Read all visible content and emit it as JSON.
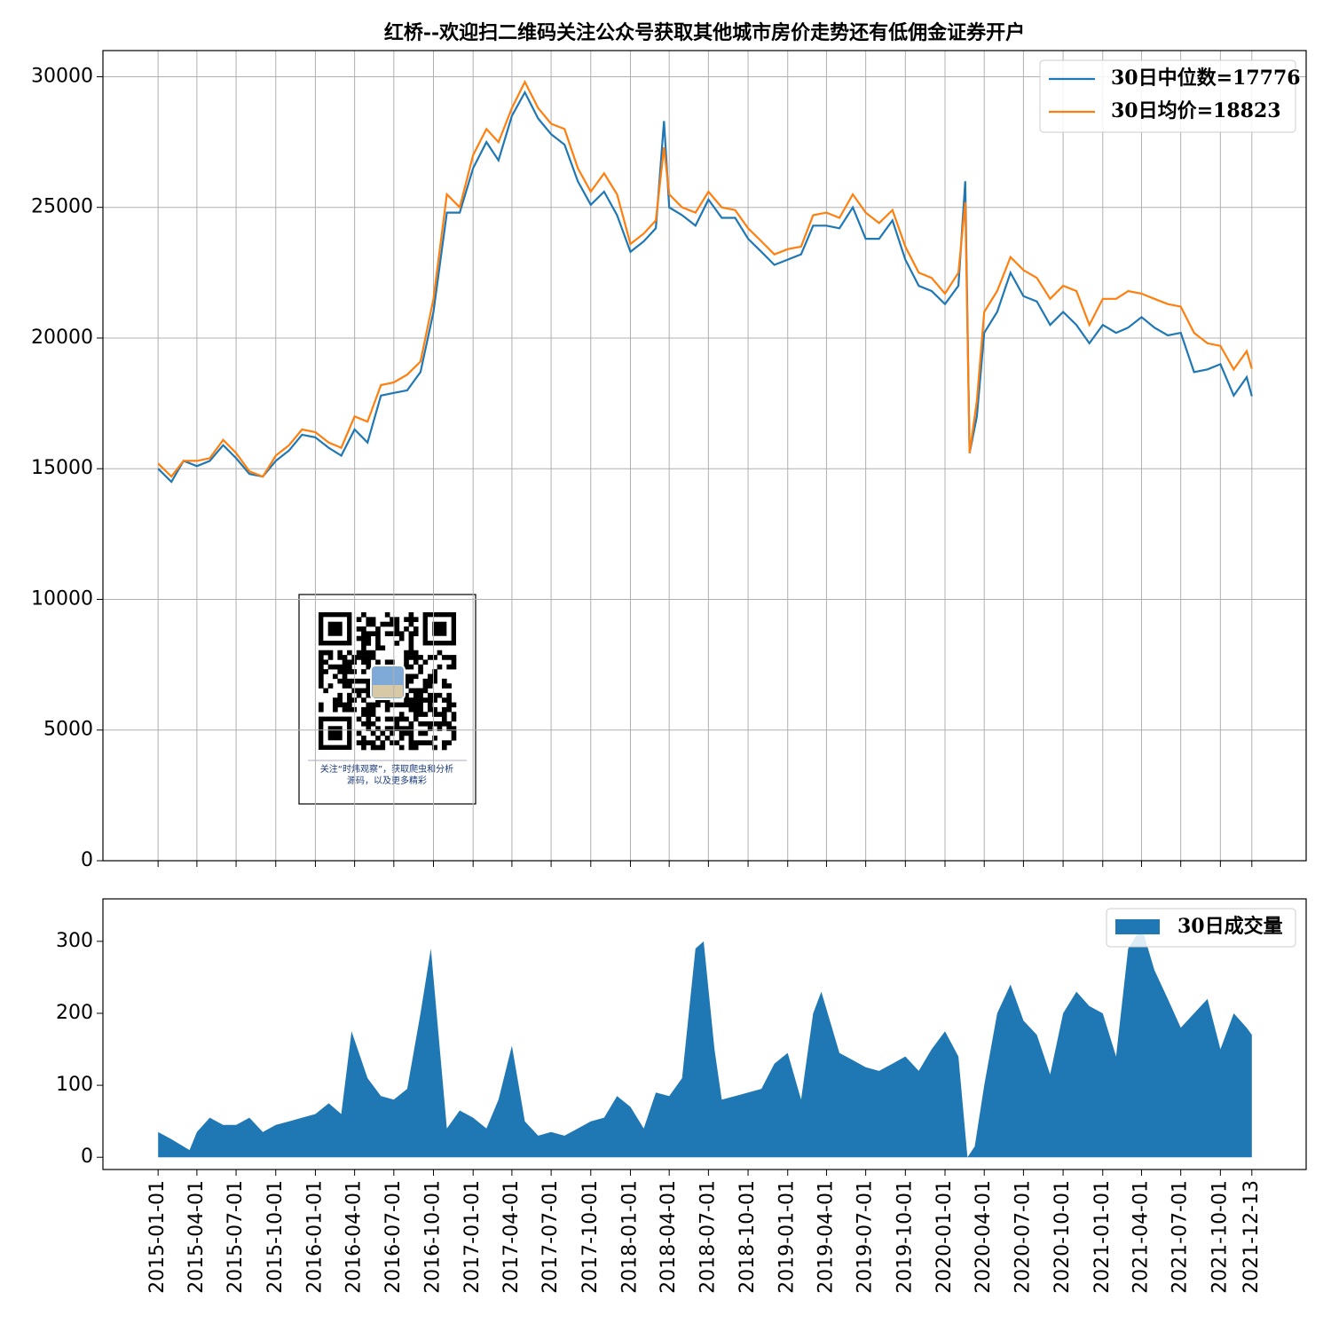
{
  "chart_data": [
    {
      "type": "line",
      "title": "红桥--欢迎扫二维码关注公众号获取其他城市房价走势还有低佣金证券开户",
      "x": [
        "2015-01-01",
        "2015-02-01",
        "2015-03-01",
        "2015-04-01",
        "2015-05-01",
        "2015-06-01",
        "2015-07-01",
        "2015-08-01",
        "2015-09-01",
        "2015-10-01",
        "2015-11-01",
        "2015-12-01",
        "2016-01-01",
        "2016-02-01",
        "2016-03-01",
        "2016-04-01",
        "2016-05-01",
        "2016-06-01",
        "2016-07-01",
        "2016-08-01",
        "2016-09-01",
        "2016-10-01",
        "2016-11-01",
        "2016-12-01",
        "2017-01-01",
        "2017-02-01",
        "2017-03-01",
        "2017-04-01",
        "2017-05-01",
        "2017-06-01",
        "2017-07-01",
        "2017-08-01",
        "2017-09-01",
        "2017-10-01",
        "2017-11-01",
        "2017-12-01",
        "2018-01-01",
        "2018-02-01",
        "2018-03-01",
        "2018-03-20",
        "2018-04-01",
        "2018-05-01",
        "2018-06-01",
        "2018-07-01",
        "2018-08-01",
        "2018-09-01",
        "2018-10-01",
        "2018-11-01",
        "2018-12-01",
        "2019-01-01",
        "2019-02-01",
        "2019-03-01",
        "2019-04-01",
        "2019-05-01",
        "2019-06-01",
        "2019-07-01",
        "2019-08-01",
        "2019-09-01",
        "2019-10-01",
        "2019-11-01",
        "2019-12-01",
        "2020-01-01",
        "2020-02-01",
        "2020-02-17",
        "2020-02-27",
        "2020-03-15",
        "2020-04-01",
        "2020-05-01",
        "2020-06-01",
        "2020-07-01",
        "2020-08-01",
        "2020-09-01",
        "2020-10-01",
        "2020-11-01",
        "2020-12-01",
        "2021-01-01",
        "2021-02-01",
        "2021-03-01",
        "2021-04-01",
        "2021-05-01",
        "2021-06-01",
        "2021-07-01",
        "2021-08-01",
        "2021-09-01",
        "2021-10-01",
        "2021-11-01",
        "2021-12-01",
        "2021-12-13"
      ],
      "series": [
        {
          "name": "30日中位数=17776",
          "color": "#1f77b4",
          "values": [
            15000,
            14500,
            15300,
            15100,
            15300,
            15900,
            15400,
            14800,
            14700,
            15300,
            15700,
            16300,
            16200,
            15800,
            15500,
            16500,
            16000,
            17800,
            17900,
            18000,
            18700,
            21000,
            24800,
            24800,
            26500,
            27500,
            26800,
            28500,
            29400,
            28400,
            27800,
            27400,
            26000,
            25100,
            25600,
            24700,
            23300,
            23700,
            24200,
            28300,
            25000,
            24700,
            24300,
            25300,
            24600,
            24600,
            23800,
            23300,
            22800,
            23000,
            23200,
            24300,
            24300,
            24200,
            25000,
            23800,
            23800,
            24500,
            23000,
            22000,
            21800,
            21300,
            22000,
            26000,
            15600,
            17000,
            20200,
            21000,
            22500,
            21600,
            21400,
            20500,
            21000,
            20500,
            19800,
            20500,
            20200,
            20400,
            20800,
            20400,
            20100,
            20200,
            18700,
            18800,
            19000,
            17800,
            18500,
            17776
          ]
        },
        {
          "name": "30日均价=18823",
          "color": "#ff7f0e",
          "values": [
            15200,
            14700,
            15300,
            15300,
            15400,
            16100,
            15600,
            14900,
            14700,
            15500,
            15900,
            16500,
            16400,
            16000,
            15800,
            17000,
            16800,
            18200,
            18300,
            18600,
            19100,
            21500,
            25500,
            25000,
            27000,
            28000,
            27500,
            28800,
            29800,
            28800,
            28200,
            28000,
            26500,
            25600,
            26300,
            25500,
            23600,
            24000,
            24500,
            27300,
            25500,
            25000,
            24800,
            25600,
            25000,
            24900,
            24200,
            23700,
            23200,
            23400,
            23500,
            24700,
            24800,
            24600,
            25500,
            24800,
            24400,
            24900,
            23500,
            22500,
            22300,
            21700,
            22500,
            25200,
            15600,
            17600,
            21000,
            21800,
            23100,
            22600,
            22300,
            21500,
            22000,
            21800,
            20500,
            21500,
            21500,
            21800,
            21700,
            21500,
            21300,
            21200,
            20200,
            19800,
            19700,
            18800,
            19500,
            18823
          ]
        }
      ],
      "xlim": [
        "2014-08-26",
        "2022-04-18"
      ],
      "xticks": [
        "2015-01-01",
        "2015-04-01",
        "2015-07-01",
        "2015-10-01",
        "2016-01-01",
        "2016-04-01",
        "2016-07-01",
        "2016-10-01",
        "2017-01-01",
        "2017-04-01",
        "2017-07-01",
        "2017-10-01",
        "2018-01-01",
        "2018-04-01",
        "2018-07-01",
        "2018-10-01",
        "2019-01-01",
        "2019-04-01",
        "2019-07-01",
        "2019-10-01",
        "2020-01-01",
        "2020-04-01",
        "2020-07-01",
        "2020-10-01",
        "2021-01-01",
        "2021-04-01",
        "2021-07-01",
        "2021-10-01",
        "2021-12-13"
      ],
      "ylim": [
        0,
        31000
      ],
      "yticks": [
        0,
        5000,
        10000,
        15000,
        20000,
        25000,
        30000
      ],
      "grid": true,
      "legend": "upper right",
      "qr_caption": [
        "关注“时炜观察”，获取爬虫和分析",
        "源码，以及更多精彩"
      ]
    },
    {
      "type": "area",
      "x": [
        "2015-01-01",
        "2015-02-01",
        "2015-03-15",
        "2015-04-01",
        "2015-05-01",
        "2015-06-01",
        "2015-07-01",
        "2015-08-01",
        "2015-09-01",
        "2015-10-01",
        "2015-11-01",
        "2015-12-01",
        "2016-01-01",
        "2016-02-01",
        "2016-03-01",
        "2016-03-25",
        "2016-05-01",
        "2016-06-01",
        "2016-07-01",
        "2016-08-01",
        "2016-09-01",
        "2016-09-25",
        "2016-11-01",
        "2016-12-01",
        "2017-01-01",
        "2017-02-01",
        "2017-03-01",
        "2017-04-01",
        "2017-05-01",
        "2017-06-01",
        "2017-07-01",
        "2017-08-01",
        "2017-09-01",
        "2017-10-01",
        "2017-11-01",
        "2017-12-01",
        "2018-01-01",
        "2018-02-01",
        "2018-03-01",
        "2018-04-01",
        "2018-05-01",
        "2018-06-01",
        "2018-06-20",
        "2018-07-15",
        "2018-08-01",
        "2018-09-01",
        "2018-10-01",
        "2018-11-01",
        "2018-12-01",
        "2019-01-01",
        "2019-02-01",
        "2019-03-01",
        "2019-03-20",
        "2019-05-01",
        "2019-06-01",
        "2019-07-01",
        "2019-08-01",
        "2019-09-01",
        "2019-10-01",
        "2019-11-01",
        "2019-12-01",
        "2020-01-01",
        "2020-02-01",
        "2020-02-22",
        "2020-03-10",
        "2020-04-01",
        "2020-05-01",
        "2020-06-01",
        "2020-07-01",
        "2020-08-01",
        "2020-09-01",
        "2020-10-01",
        "2020-11-01",
        "2020-12-01",
        "2021-01-01",
        "2021-02-01",
        "2021-03-01",
        "2021-04-01",
        "2021-05-01",
        "2021-06-01",
        "2021-07-01",
        "2021-08-01",
        "2021-09-01",
        "2021-10-01",
        "2021-11-01",
        "2021-12-01",
        "2021-12-13"
      ],
      "series": [
        {
          "name": "30日成交量",
          "color": "#1f77b4",
          "values": [
            35,
            25,
            10,
            35,
            55,
            45,
            45,
            55,
            35,
            45,
            50,
            55,
            60,
            75,
            60,
            175,
            110,
            85,
            80,
            95,
            200,
            290,
            40,
            65,
            55,
            40,
            80,
            155,
            50,
            30,
            35,
            30,
            40,
            50,
            55,
            85,
            70,
            40,
            90,
            85,
            110,
            290,
            300,
            150,
            80,
            85,
            90,
            95,
            130,
            145,
            80,
            200,
            230,
            145,
            135,
            125,
            120,
            130,
            140,
            120,
            150,
            175,
            140,
            0,
            15,
            100,
            200,
            240,
            190,
            170,
            115,
            200,
            230,
            210,
            200,
            140,
            290,
            320,
            260,
            220,
            180,
            200,
            220,
            150,
            200,
            180,
            170
          ]
        }
      ],
      "xlim": [
        "2014-08-26",
        "2022-04-18"
      ],
      "xticks": [
        "2015-01-01",
        "2015-04-01",
        "2015-07-01",
        "2015-10-01",
        "2016-01-01",
        "2016-04-01",
        "2016-07-01",
        "2016-10-01",
        "2017-01-01",
        "2017-04-01",
        "2017-07-01",
        "2017-10-01",
        "2018-01-01",
        "2018-04-01",
        "2018-07-01",
        "2018-10-01",
        "2019-01-01",
        "2019-04-01",
        "2019-07-01",
        "2019-10-01",
        "2020-01-01",
        "2020-04-01",
        "2020-07-01",
        "2020-10-01",
        "2021-01-01",
        "2021-04-01",
        "2021-07-01",
        "2021-10-01",
        "2021-12-13"
      ],
      "ylim": [
        -17,
        359
      ],
      "yticks": [
        0,
        100,
        200,
        300
      ],
      "grid": false,
      "legend": "upper right"
    }
  ]
}
